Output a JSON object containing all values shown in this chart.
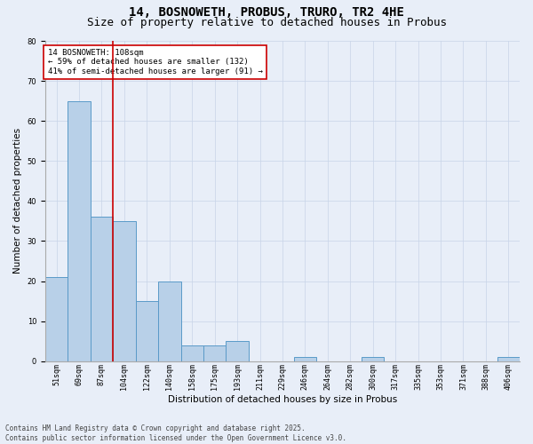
{
  "title1": "14, BOSNOWETH, PROBUS, TRURO, TR2 4HE",
  "title2": "Size of property relative to detached houses in Probus",
  "xlabel": "Distribution of detached houses by size in Probus",
  "ylabel": "Number of detached properties",
  "bins": [
    "51sqm",
    "69sqm",
    "87sqm",
    "104sqm",
    "122sqm",
    "140sqm",
    "158sqm",
    "175sqm",
    "193sqm",
    "211sqm",
    "229sqm",
    "246sqm",
    "264sqm",
    "282sqm",
    "300sqm",
    "317sqm",
    "335sqm",
    "353sqm",
    "371sqm",
    "388sqm",
    "406sqm"
  ],
  "values": [
    21,
    65,
    36,
    35,
    15,
    20,
    4,
    4,
    5,
    0,
    0,
    1,
    0,
    0,
    1,
    0,
    0,
    0,
    0,
    0,
    1
  ],
  "bar_color": "#b8d0e8",
  "bar_edge_color": "#5a9ac8",
  "bar_linewidth": 0.7,
  "grid_color": "#c8d4e8",
  "bg_color": "#e8eef8",
  "annotation_box_text": "14 BOSNOWETH: 108sqm\n← 59% of detached houses are smaller (132)\n41% of semi-detached houses are larger (91) →",
  "vline_bin_index": 3,
  "vline_color": "#cc0000",
  "ylim": [
    0,
    80
  ],
  "yticks": [
    0,
    10,
    20,
    30,
    40,
    50,
    60,
    70,
    80
  ],
  "footnote": "Contains HM Land Registry data © Crown copyright and database right 2025.\nContains public sector information licensed under the Open Government Licence v3.0.",
  "title_fontsize": 10,
  "subtitle_fontsize": 9,
  "axis_label_fontsize": 7.5,
  "tick_fontsize": 6,
  "annotation_fontsize": 6.5,
  "footnote_fontsize": 5.5,
  "ylabel_fontsize": 7.5
}
